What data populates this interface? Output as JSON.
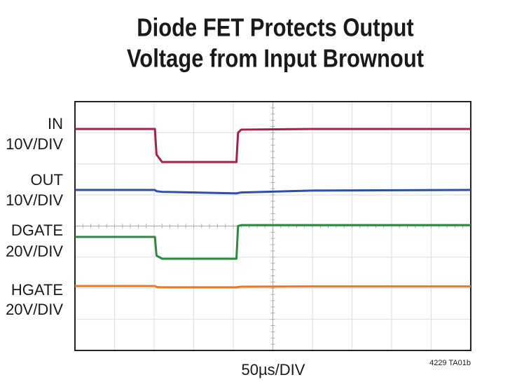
{
  "chart_data": {
    "type": "line",
    "title_lines": [
      "Diode FET Protects Output",
      "Voltage from Input Brownout"
    ],
    "x_label": "50µs/DIV",
    "note": "4229 TA01b",
    "x": [
      0,
      101,
      103,
      110,
      204,
      206,
      210,
      300,
      500
    ],
    "xlim": [
      0,
      500
    ],
    "ylim": [
      0,
      8
    ],
    "grid": true,
    "series": [
      {
        "name": "IN",
        "scale": "10V/DIV",
        "color": "#a3224c",
        "values": [
          7.12,
          7.12,
          6.3,
          6.06,
          6.06,
          7.0,
          7.1,
          7.12,
          7.12
        ]
      },
      {
        "name": "OUT",
        "scale": "10V/DIV",
        "color": "#2f4ea6",
        "values": [
          5.16,
          5.16,
          5.12,
          5.1,
          5.05,
          5.06,
          5.08,
          5.14,
          5.16
        ]
      },
      {
        "name": "DGATE",
        "scale": "20V/DIV",
        "color": "#2f8a40",
        "values": [
          3.65,
          3.65,
          3.05,
          2.95,
          2.95,
          4.0,
          4.03,
          4.03,
          4.03
        ]
      },
      {
        "name": "HGATE",
        "scale": "20V/DIV",
        "color": "#e27c2c",
        "values": [
          2.07,
          2.07,
          2.04,
          2.03,
          2.03,
          2.04,
          2.05,
          2.06,
          2.06
        ]
      }
    ]
  }
}
